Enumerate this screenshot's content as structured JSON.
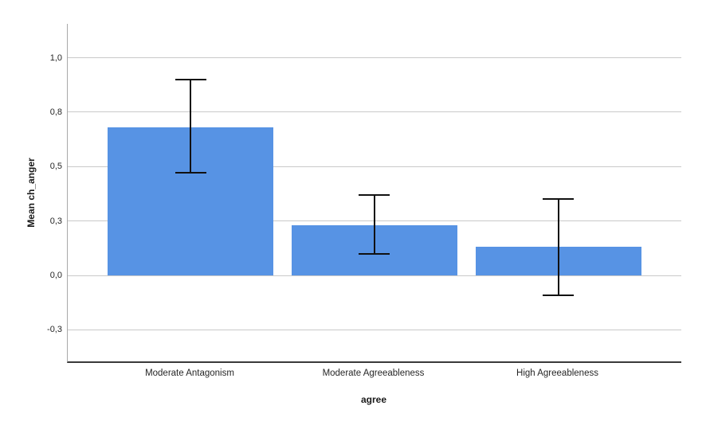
{
  "chart_data": {
    "type": "bar",
    "title": "",
    "xlabel": "agree",
    "ylabel": "Mean ch_anger",
    "categories": [
      "Moderate Antagonism",
      "Moderate Agreeableness",
      "High Agreeableness"
    ],
    "values": [
      0.68,
      0.23,
      0.13
    ],
    "error_bars": [
      {
        "low": 0.47,
        "high": 0.9
      },
      {
        "low": 0.1,
        "high": 0.37
      },
      {
        "low": -0.09,
        "high": 0.35
      }
    ],
    "yticks": [
      {
        "value": 1.0,
        "label": "1,0"
      },
      {
        "value": 0.75,
        "label": "0,8"
      },
      {
        "value": 0.5,
        "label": "0,5"
      },
      {
        "value": 0.25,
        "label": "0,3"
      },
      {
        "value": 0.0,
        "label": "0,0"
      },
      {
        "value": -0.25,
        "label": "-0,3"
      }
    ],
    "ylim": [
      -0.395,
      1.155
    ],
    "grid": true,
    "legend": false,
    "decimal_separator": ",",
    "colors": {
      "bar": "#5793E4",
      "grid": "#C9C9C9",
      "y_axis": "#A8A8A8",
      "x_axis": "#3A3A3A",
      "error_bar": "#111111",
      "text": "#262626"
    }
  }
}
